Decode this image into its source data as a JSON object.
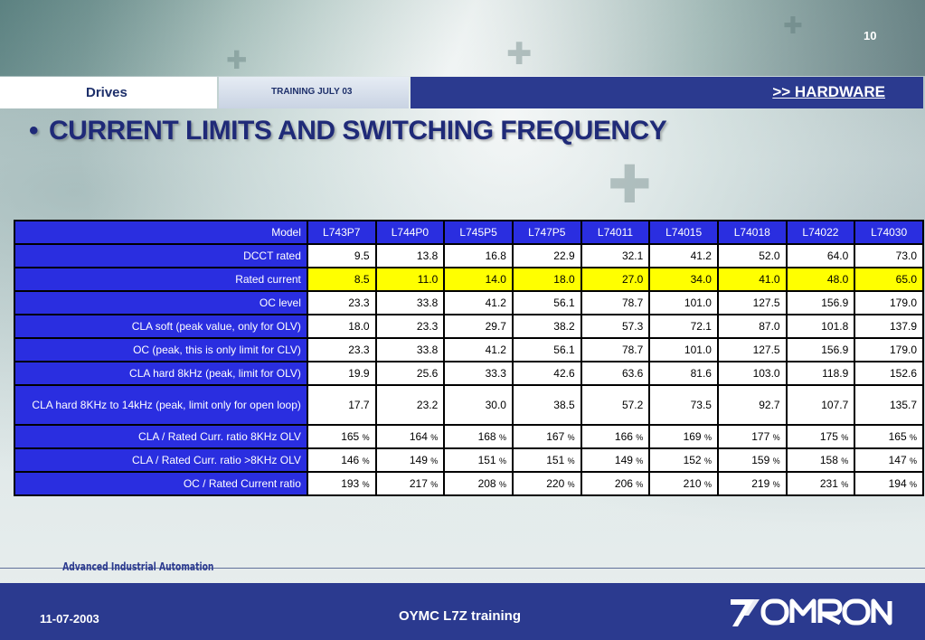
{
  "slide": {
    "page_number": "10",
    "section_left": "Drives",
    "section_middle": "TRAINING JULY 03",
    "section_right": ">>  HARDWARE",
    "bullet": "•",
    "title": "CURRENT LIMITS AND SWITCHING FREQUENCY"
  },
  "table": {
    "header_label": "Model",
    "models": [
      "L743P7",
      "L744P0",
      "L745P5",
      "L747P5",
      "L74011",
      "L74015",
      "L74018",
      "L74022",
      "L74030"
    ],
    "rows": [
      {
        "label": "DCCT rated",
        "values": [
          "9.5",
          "13.8",
          "16.8",
          "22.9",
          "32.1",
          "41.2",
          "52.0",
          "64.0",
          "73.0"
        ]
      },
      {
        "label": "Rated current",
        "highlight": "#ffff00",
        "values": [
          "8.5",
          "11.0",
          "14.0",
          "18.0",
          "27.0",
          "34.0",
          "41.0",
          "48.0",
          "65.0"
        ]
      },
      {
        "label": "OC level",
        "values": [
          "23.3",
          "33.8",
          "41.2",
          "56.1",
          "78.7",
          "101.0",
          "127.5",
          "156.9",
          "179.0"
        ]
      },
      {
        "label": "CLA soft (peak value, only for OLV)",
        "values": [
          "18.0",
          "23.3",
          "29.7",
          "38.2",
          "57.3",
          "72.1",
          "87.0",
          "101.8",
          "137.9"
        ]
      },
      {
        "label": "OC (peak, this is only limit for CLV)",
        "values": [
          "23.3",
          "33.8",
          "41.2",
          "56.1",
          "78.7",
          "101.0",
          "127.5",
          "156.9",
          "179.0"
        ]
      },
      {
        "label": "CLA hard 8kHz (peak, limit for OLV)",
        "values": [
          "19.9",
          "25.6",
          "33.3",
          "42.6",
          "63.6",
          "81.6",
          "103.0",
          "118.9",
          "152.6"
        ]
      },
      {
        "label": "CLA hard 8KHz to 14kHz (peak, limit only for open loop)",
        "values": [
          "17.7",
          "23.2",
          "30.0",
          "38.5",
          "57.2",
          "73.5",
          "92.7",
          "107.7",
          "135.7"
        ]
      },
      {
        "label": "CLA / Rated Curr. ratio 8KHz OLV",
        "values": [
          "165",
          "164",
          "168",
          "167",
          "166",
          "169",
          "177",
          "175",
          "165"
        ],
        "unit": "%"
      },
      {
        "label": "CLA / Rated Curr. ratio >8KHz OLV",
        "values": [
          "146",
          "149",
          "151",
          "151",
          "149",
          "152",
          "159",
          "158",
          "147"
        ],
        "unit": "%"
      },
      {
        "label": "OC / Rated Current ratio",
        "values": [
          "193",
          "217",
          "208",
          "220",
          "206",
          "210",
          "219",
          "231",
          "194"
        ],
        "unit": "%"
      }
    ]
  },
  "footer": {
    "tagline": "Advanced Industrial Automation",
    "date": "11-07-2003",
    "course": "OYMC L7Z training",
    "logo_text": "OMRON"
  },
  "colors": {
    "header_blue": "#2a2ee0",
    "bar_blue": "#2b3a8f",
    "highlight_yellow": "#ffff00"
  }
}
